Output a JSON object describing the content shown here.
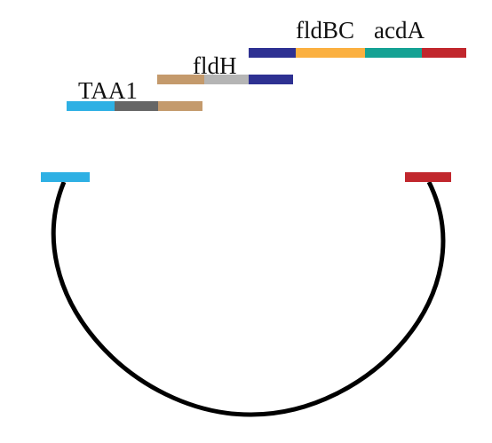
{
  "labels": {
    "taa1": "TAA1",
    "fldh": "fldH",
    "fldbc": "fldBC",
    "acda": "acdA"
  },
  "colors": {
    "taa1_blue": "#2eb0e4",
    "dark_grey": "#666666",
    "tan": "#c49a6c",
    "light_grey": "#b5b5b5",
    "navy": "#2e3192",
    "orange": "#fbb040",
    "teal": "#15a294",
    "red": "#c1272d",
    "backbone": "#000000"
  }
}
